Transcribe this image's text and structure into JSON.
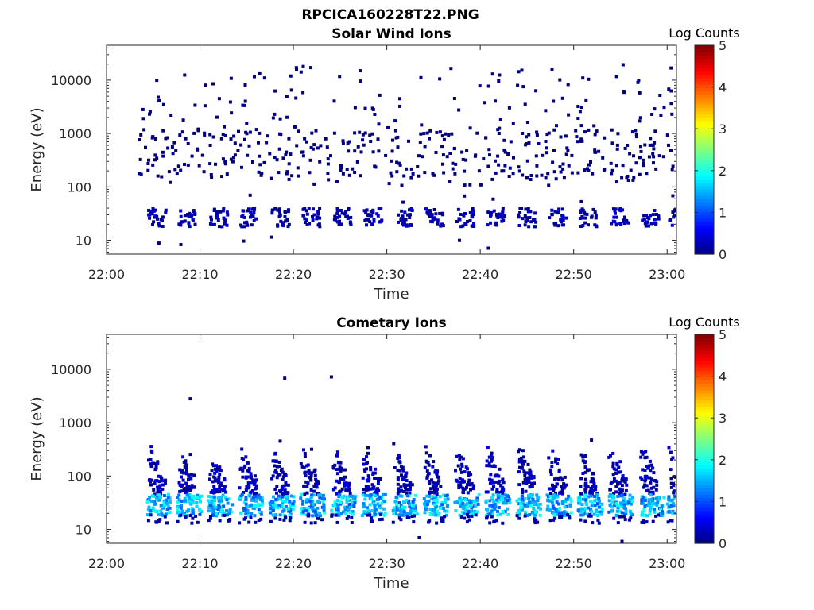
{
  "figure_title": "RPCICA160228T22.PNG",
  "chart_data": [
    {
      "type": "heatmap",
      "title": "Solar Wind Ions",
      "xlabel": "Time",
      "ylabel": "Energy (eV)",
      "x_ticks": [
        "22:00",
        "22:10",
        "22:20",
        "22:30",
        "22:40",
        "22:50",
        "23:00"
      ],
      "x_range_minutes": [
        0,
        61
      ],
      "y_scale": "log",
      "y_ticks": [
        "10",
        "100",
        "1000",
        "10000"
      ],
      "y_range": [
        5.5,
        45000
      ],
      "colorbar": {
        "title": "Log Counts",
        "ticks": [
          "0",
          "1",
          "2",
          "3",
          "4",
          "5"
        ],
        "range": [
          0,
          5
        ]
      },
      "pulse_start_minutes": [
        4.3,
        7.6,
        10.9,
        14.2,
        17.5,
        20.8,
        24.1,
        27.4,
        30.7,
        34.0,
        37.3,
        40.6,
        43.9,
        47.2,
        50.5,
        53.8,
        57.1,
        60.0
      ],
      "low_band_eV": [
        18,
        40
      ],
      "low_band_log_counts": [
        0.0,
        0.4
      ],
      "scatter_band_eV": [
        100,
        20000
      ],
      "scatter_log_counts": 0.0
    },
    {
      "type": "heatmap",
      "title": "Cometary Ions",
      "xlabel": "Time",
      "ylabel": "Energy (eV)",
      "x_ticks": [
        "22:00",
        "22:10",
        "22:20",
        "22:30",
        "22:40",
        "22:50",
        "23:00"
      ],
      "x_range_minutes": [
        0,
        61
      ],
      "y_scale": "log",
      "y_ticks": [
        "10",
        "100",
        "1000",
        "10000"
      ],
      "y_range": [
        5.5,
        45000
      ],
      "colorbar": {
        "title": "Log Counts",
        "ticks": [
          "0",
          "1",
          "2",
          "3",
          "4",
          "5"
        ],
        "range": [
          0,
          5
        ]
      },
      "pulse_start_minutes": [
        4.1,
        7.4,
        10.7,
        14.0,
        17.3,
        20.6,
        23.9,
        27.2,
        30.5,
        33.8,
        37.1,
        40.4,
        43.7,
        47.0,
        50.3,
        53.6,
        56.9,
        59.8
      ],
      "core_band_eV": [
        18,
        45
      ],
      "core_log_counts": [
        1.0,
        2.0
      ],
      "plume_band_eV": [
        45,
        400
      ],
      "plume_log_counts": [
        0.0,
        0.5
      ],
      "sparse_points": [
        {
          "minute": 8.8,
          "eV": 2800
        },
        {
          "minute": 18.9,
          "eV": 6800
        },
        {
          "minute": 23.9,
          "eV": 7200
        },
        {
          "minute": 33.3,
          "eV": 7
        },
        {
          "minute": 55.0,
          "eV": 6
        }
      ]
    }
  ]
}
